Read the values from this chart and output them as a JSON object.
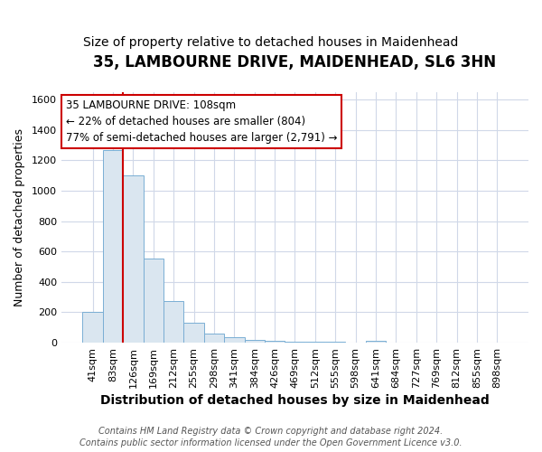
{
  "title1": "35, LAMBOURNE DRIVE, MAIDENHEAD, SL6 3HN",
  "title2": "Size of property relative to detached houses in Maidenhead",
  "xlabel": "Distribution of detached houses by size in Maidenhead",
  "ylabel": "Number of detached properties",
  "categories": [
    "41sqm",
    "83sqm",
    "126sqm",
    "169sqm",
    "212sqm",
    "255sqm",
    "298sqm",
    "341sqm",
    "384sqm",
    "426sqm",
    "469sqm",
    "512sqm",
    "555sqm",
    "598sqm",
    "641sqm",
    "684sqm",
    "727sqm",
    "769sqm",
    "812sqm",
    "855sqm",
    "898sqm"
  ],
  "values": [
    200,
    1270,
    1100,
    555,
    275,
    130,
    60,
    35,
    20,
    15,
    5,
    5,
    5,
    0,
    15,
    0,
    0,
    0,
    0,
    0,
    0
  ],
  "bar_color": "#dae6f0",
  "bar_edge_color": "#7aaed4",
  "bar_edge_width": 0.7,
  "background_color": "#ffffff",
  "grid_color": "#d0d8e8",
  "red_line_x": 1.5,
  "red_line_color": "#cc0000",
  "ylim": [
    0,
    1650
  ],
  "yticks": [
    0,
    200,
    400,
    600,
    800,
    1000,
    1200,
    1400,
    1600
  ],
  "annotation_text": "35 LAMBOURNE DRIVE: 108sqm\n← 22% of detached houses are smaller (804)\n77% of semi-detached houses are larger (2,791) →",
  "footer_line1": "Contains HM Land Registry data © Crown copyright and database right 2024.",
  "footer_line2": "Contains public sector information licensed under the Open Government Licence v3.0.",
  "title1_fontsize": 12,
  "title2_fontsize": 10,
  "xlabel_fontsize": 10,
  "ylabel_fontsize": 9,
  "tick_fontsize": 8,
  "footer_fontsize": 7
}
